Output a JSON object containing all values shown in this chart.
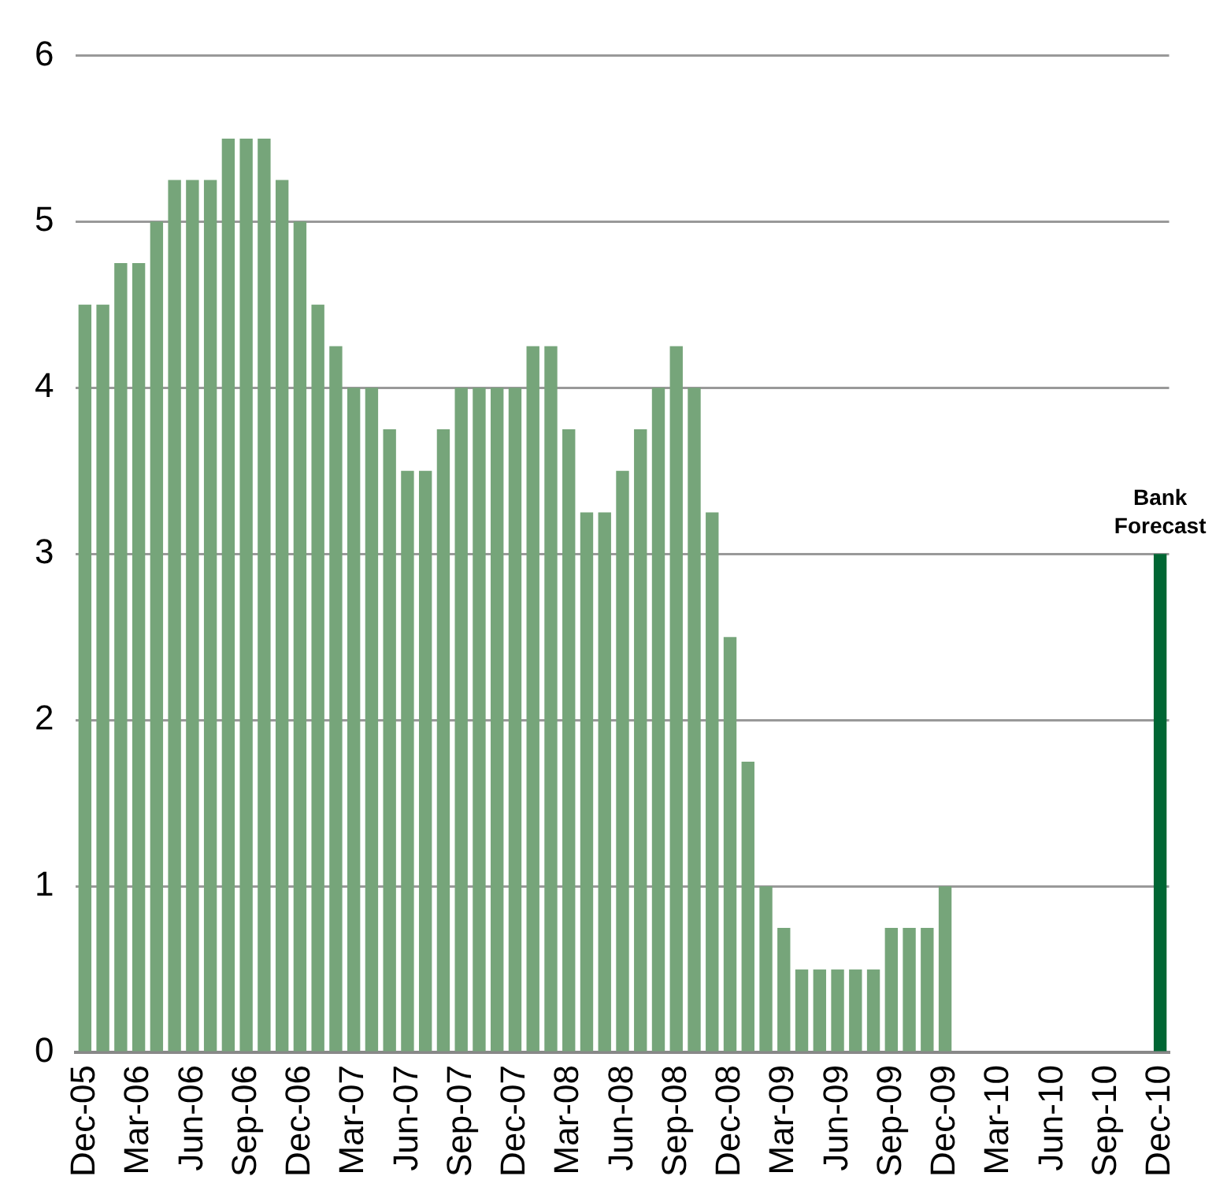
{
  "chart_data": {
    "type": "bar",
    "categories": [
      "Dec-05",
      null,
      null,
      "Mar-06",
      null,
      null,
      "Jun-06",
      null,
      null,
      "Sep-06",
      null,
      null,
      "Dec-06",
      null,
      null,
      "Mar-07",
      null,
      null,
      "Jun-07",
      null,
      null,
      "Sep-07",
      null,
      null,
      "Dec-07",
      null,
      null,
      "Mar-08",
      null,
      null,
      "Jun-08",
      null,
      null,
      "Sep-08",
      null,
      null,
      "Dec-08",
      null,
      null,
      "Mar-09",
      null,
      null,
      "Jun-09",
      null,
      null,
      "Sep-09",
      null,
      null,
      "Dec-09",
      null,
      null,
      "Mar-10",
      null,
      null,
      "Jun-10",
      null,
      null,
      "Sep-10",
      null,
      null,
      "Dec-10"
    ],
    "values": [
      4.5,
      4.5,
      4.75,
      4.75,
      5,
      5.25,
      5.25,
      5.25,
      5.5,
      5.5,
      5.5,
      5.25,
      5,
      4.5,
      4.25,
      4,
      4,
      3.75,
      3.5,
      3.5,
      3.75,
      4,
      4,
      4,
      4,
      4.25,
      4.25,
      3.75,
      3.25,
      3.25,
      3.5,
      3.75,
      4,
      4.25,
      4,
      3.25,
      2.5,
      1.75,
      1,
      0.75,
      0.5,
      0.5,
      0.5,
      0.5,
      0.5,
      0.75,
      0.75,
      0.75,
      1,
      null,
      null,
      null,
      null,
      null,
      null,
      null,
      null,
      null,
      null,
      null,
      3
    ],
    "colors": [
      "#76a57a",
      "#76a57a",
      "#76a57a",
      "#76a57a",
      "#76a57a",
      "#76a57a",
      "#76a57a",
      "#76a57a",
      "#76a57a",
      "#76a57a",
      "#76a57a",
      "#76a57a",
      "#76a57a",
      "#76a57a",
      "#76a57a",
      "#76a57a",
      "#76a57a",
      "#76a57a",
      "#76a57a",
      "#76a57a",
      "#76a57a",
      "#76a57a",
      "#76a57a",
      "#76a57a",
      "#76a57a",
      "#76a57a",
      "#76a57a",
      "#76a57a",
      "#76a57a",
      "#76a57a",
      "#76a57a",
      "#76a57a",
      "#76a57a",
      "#76a57a",
      "#76a57a",
      "#76a57a",
      "#76a57a",
      "#76a57a",
      "#76a57a",
      "#76a57a",
      "#76a57a",
      "#76a57a",
      "#76a57a",
      "#76a57a",
      "#76a57a",
      "#76a57a",
      "#76a57a",
      "#76a57a",
      "#76a57a",
      "#76a57a",
      "#76a57a",
      "#76a57a",
      "#76a57a",
      "#76a57a",
      "#76a57a",
      "#76a57a",
      "#76a57a",
      "#76a57a",
      "#76a57a",
      "#76a57a",
      "#006633"
    ],
    "ylim": [
      0,
      6
    ],
    "yticks": [
      0,
      1,
      2,
      3,
      4,
      5,
      6
    ],
    "grid": "y",
    "legend": false,
    "annotations": [
      {
        "text": "Bank Forecast",
        "x": "Dec-10",
        "y": 3
      }
    ]
  }
}
